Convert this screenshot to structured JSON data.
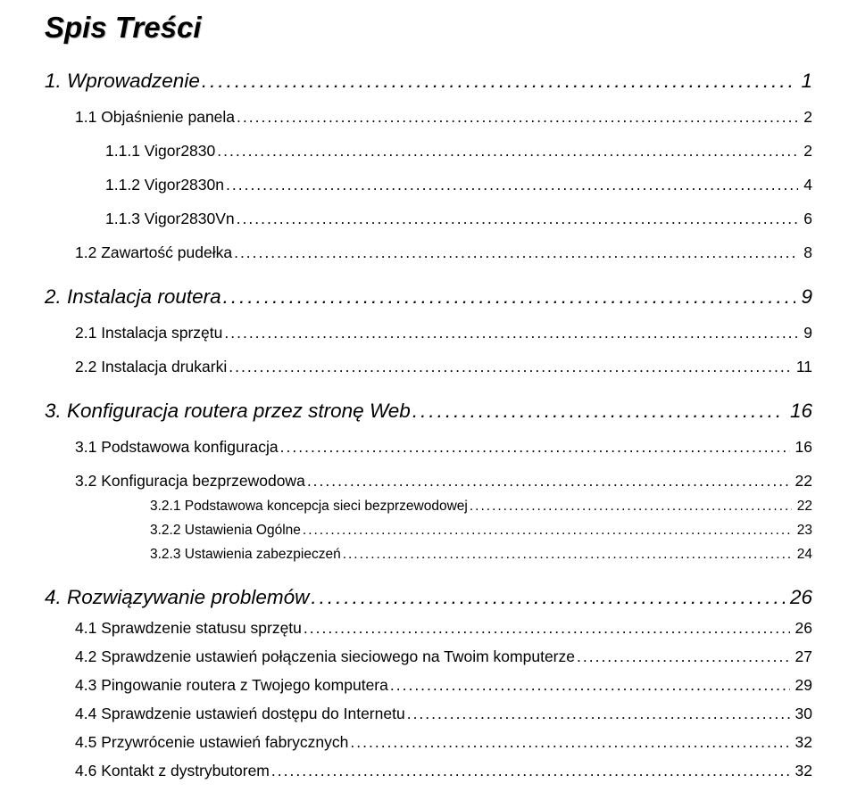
{
  "title": "Spis Treści",
  "entries": [
    {
      "level": 1,
      "label": "1. Wprowadzenie",
      "page": "1"
    },
    {
      "level": 2,
      "label": "1.1 Objaśnienie panela",
      "page": "2"
    },
    {
      "level": 3,
      "label": "1.1.1 Vigor2830",
      "page": "2"
    },
    {
      "level": 3,
      "label": "1.1.2 Vigor2830n",
      "page": "4"
    },
    {
      "level": 3,
      "label": "1.1.3 Vigor2830Vn",
      "page": "6"
    },
    {
      "level": 2,
      "label": "1.2 Zawartość pudełka",
      "page": "8"
    },
    {
      "level": 1,
      "label": "2. Instalacja routera",
      "page": "9"
    },
    {
      "level": 2,
      "label": "2.1 Instalacja sprzętu",
      "page": "9"
    },
    {
      "level": 2,
      "label": "2.2 Instalacja drukarki",
      "page": "11"
    },
    {
      "level": 1,
      "label": "3. Konfiguracja routera przez stronę Web",
      "page": "16"
    },
    {
      "level": 2,
      "label": "3.1 Podstawowa konfiguracja",
      "page": "16"
    },
    {
      "level": 2,
      "label": "3.2 Konfiguracja bezprzewodowa",
      "page": "22"
    },
    {
      "level": 4,
      "label": "3.2.1 Podstawowa koncepcja sieci bezprzewodowej",
      "page": "22"
    },
    {
      "level": 4,
      "label": "3.2.2 Ustawienia Ogólne",
      "page": "23"
    },
    {
      "level": 4,
      "label": "3.2.3 Ustawienia zabezpieczeń",
      "page": "24"
    },
    {
      "level": 1,
      "label": "4. Rozwiązywanie problemów",
      "page": "26"
    },
    {
      "level": 2,
      "label": "4.1 Sprawdzenie statusu sprzętu",
      "page": "26",
      "tight": true
    },
    {
      "level": 2,
      "label": "4.2 Sprawdzenie ustawień połączenia sieciowego na Twoim komputerze",
      "page": "27",
      "tight": true
    },
    {
      "level": 2,
      "label": "4.3 Pingowanie routera z Twojego komputera",
      "page": "29",
      "tight": true
    },
    {
      "level": 2,
      "label": "4.4 Sprawdzenie ustawień dostępu do Internetu",
      "page": "30",
      "tight": true
    },
    {
      "level": 2,
      "label": "4.5 Przywrócenie ustawień fabrycznych",
      "page": "32",
      "tight": true
    },
    {
      "level": 2,
      "label": "4.6 Kontakt z dystrybutorem",
      "page": "32",
      "tight": true
    }
  ]
}
